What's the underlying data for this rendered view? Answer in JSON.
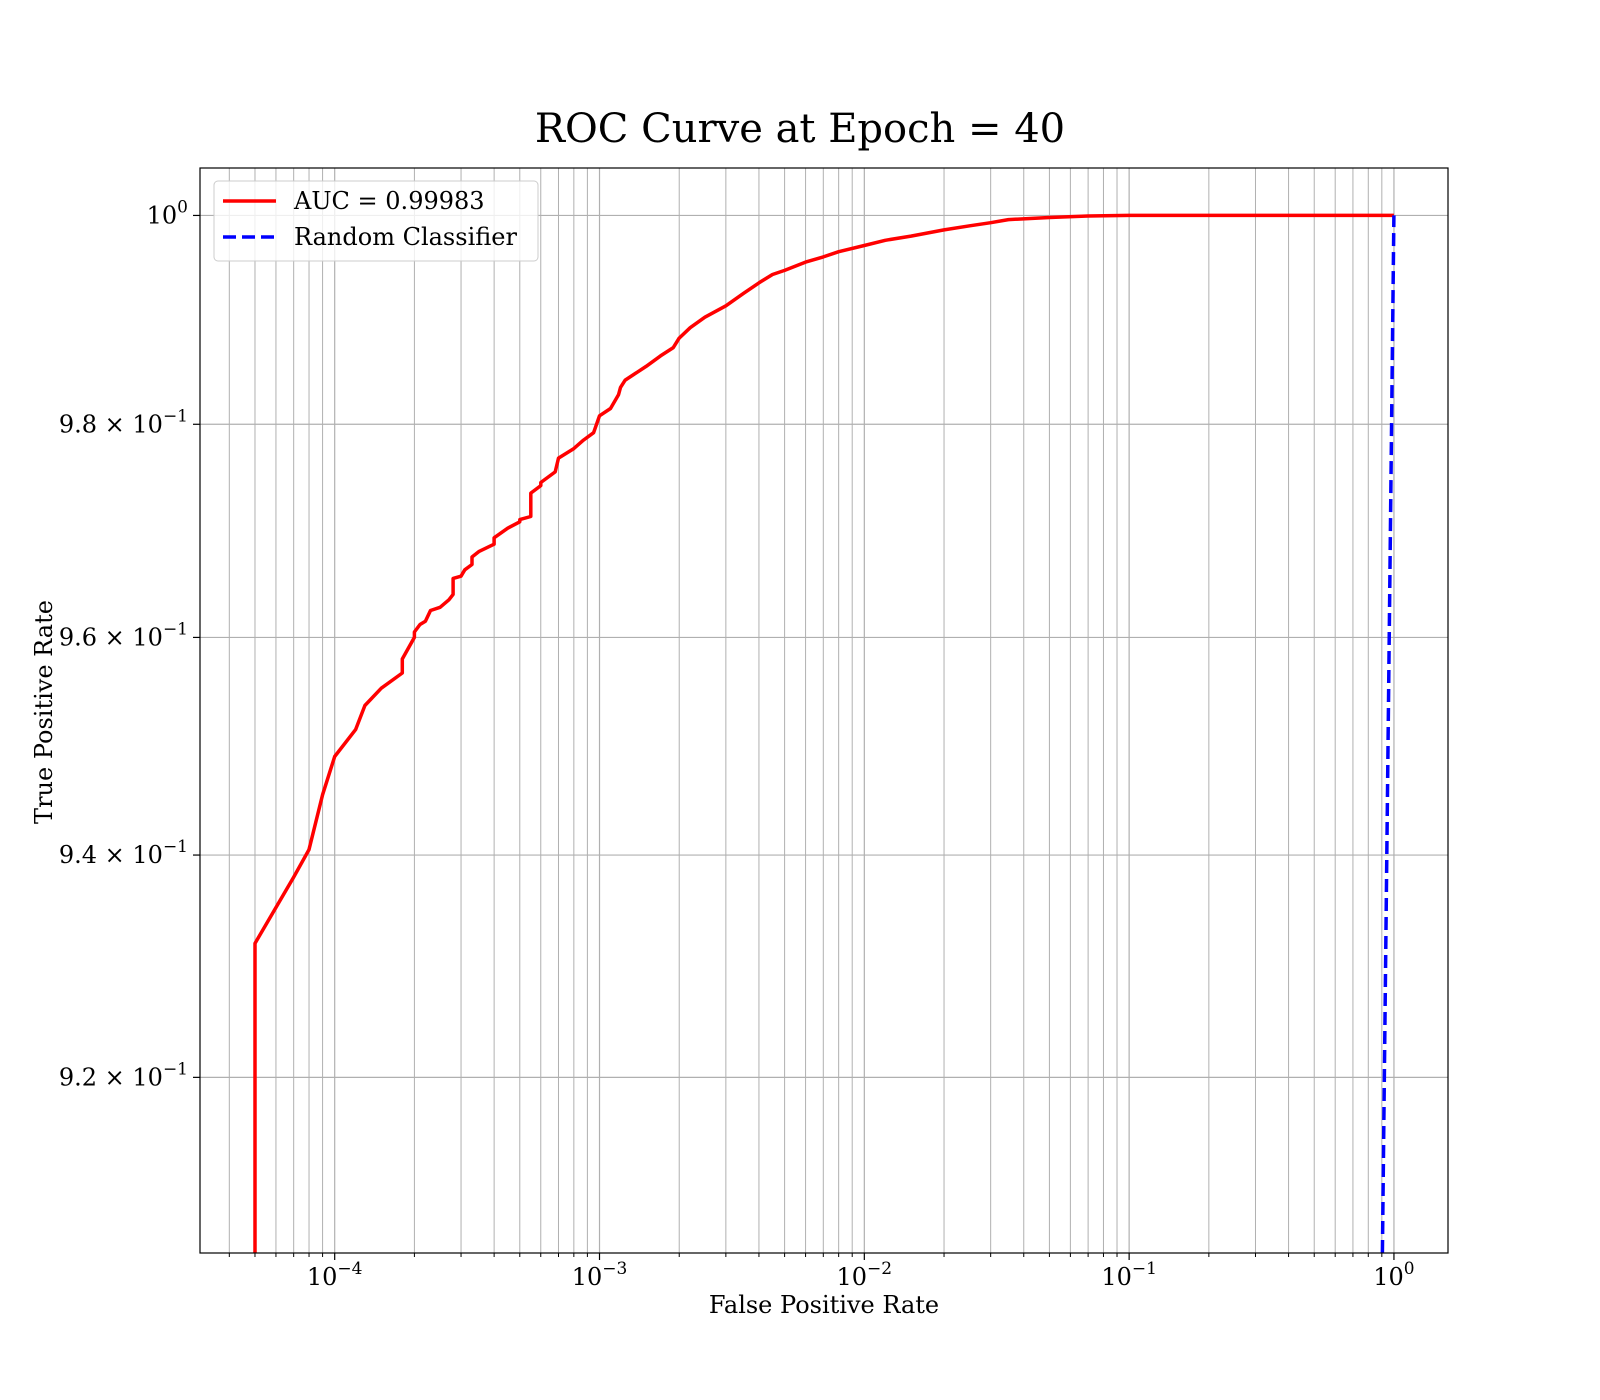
{
  "chart_data": {
    "type": "line",
    "title": "ROC Curve at Epoch = 40",
    "xlabel": "False Positive Rate",
    "ylabel": "True Positive Rate",
    "xscale": "log",
    "yscale": "log",
    "xlim": [
      3.1e-05,
      1.6
    ],
    "ylim": [
      0.9045,
      1.0046
    ],
    "grid": true,
    "grid_minor": true,
    "legend_position": "top-left",
    "x_ticks": [
      {
        "value": 0.0001,
        "base": "10",
        "exp": "−4"
      },
      {
        "value": 0.001,
        "base": "10",
        "exp": "−3"
      },
      {
        "value": 0.01,
        "base": "10",
        "exp": "−2"
      },
      {
        "value": 0.1,
        "base": "10",
        "exp": "−1"
      },
      {
        "value": 1,
        "base": "10",
        "exp": "0"
      }
    ],
    "y_ticks": [
      {
        "value": 1.0,
        "mant": "",
        "base": "10",
        "exp": "0"
      },
      {
        "value": 0.98,
        "mant": "9.8 × ",
        "base": "10",
        "exp": "−1"
      },
      {
        "value": 0.96,
        "mant": "9.6 × ",
        "base": "10",
        "exp": "−1"
      },
      {
        "value": 0.94,
        "mant": "9.4 × ",
        "base": "10",
        "exp": "−1"
      },
      {
        "value": 0.92,
        "mant": "9.2 × ",
        "base": "10",
        "exp": "−1"
      }
    ],
    "series": [
      {
        "name": "AUC = 0.99983",
        "color": "#ff0000",
        "style": "solid",
        "x": [
          5e-05,
          5e-05,
          5e-05,
          7e-05,
          8e-05,
          9e-05,
          0.0001,
          0.00012,
          0.00013,
          0.00015,
          0.00018,
          0.00018,
          0.0002,
          0.0002,
          0.00021,
          0.00022,
          0.00023,
          0.00025,
          0.00027,
          0.00028,
          0.00028,
          0.0003,
          0.00031,
          0.00033,
          0.00033,
          0.00035,
          0.0004,
          0.0004,
          0.00045,
          0.0005,
          0.0005,
          0.00055,
          0.00055,
          0.0006,
          0.0006,
          0.00068,
          0.0007,
          0.0008,
          0.00087,
          0.00095,
          0.001,
          0.0011,
          0.00118,
          0.0012,
          0.00125,
          0.0015,
          0.0017,
          0.0019,
          0.002,
          0.0022,
          0.0025,
          0.003,
          0.0035,
          0.004,
          0.0045,
          0.005,
          0.006,
          0.007,
          0.008,
          0.01,
          0.012,
          0.015,
          0.02,
          0.025,
          0.03,
          0.035,
          0.05,
          0.07,
          0.1,
          0.2,
          0.5,
          1.0
        ],
        "y": [
          0.9045,
          0.91,
          0.932,
          0.938,
          0.9405,
          0.9455,
          0.949,
          0.9515,
          0.9537,
          0.9553,
          0.9567,
          0.958,
          0.96,
          0.9605,
          0.9612,
          0.9615,
          0.9625,
          0.9628,
          0.9635,
          0.964,
          0.9655,
          0.9657,
          0.9663,
          0.9668,
          0.9675,
          0.968,
          0.9687,
          0.9693,
          0.9702,
          0.9708,
          0.971,
          0.9713,
          0.9735,
          0.9742,
          0.9745,
          0.9755,
          0.9768,
          0.9777,
          0.9785,
          0.9792,
          0.9808,
          0.9815,
          0.9828,
          0.9835,
          0.9842,
          0.9855,
          0.9865,
          0.9873,
          0.9882,
          0.9892,
          0.9902,
          0.9913,
          0.9925,
          0.9935,
          0.9943,
          0.9947,
          0.9955,
          0.996,
          0.9965,
          0.9971,
          0.9976,
          0.998,
          0.9986,
          0.999,
          0.9993,
          0.9996,
          0.9998,
          0.99995,
          1.0,
          1.0,
          1.0,
          1.0
        ]
      },
      {
        "name": "Random Classifier",
        "color": "#0000ff",
        "style": "dashed",
        "x": [
          0.9045,
          1.0
        ],
        "y": [
          0.9045,
          1.0
        ]
      }
    ]
  }
}
